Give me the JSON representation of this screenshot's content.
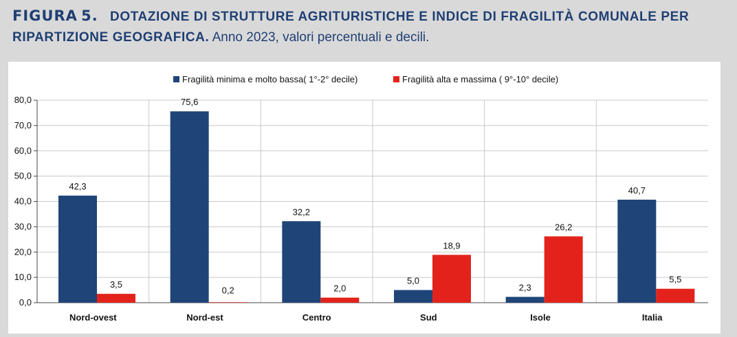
{
  "heading": {
    "label": "FIGURA",
    "number": "5.",
    "title": "DOTAZIONE DI STRUTTURE AGRITURISTICHE E INDICE DI FRAGILITÀ COMUNALE PER RIPARTIZIONE GEOGRAFICA.",
    "subtitle": "Anno 2023, valori percentuali e decili."
  },
  "colors": {
    "series1": "#1f4478",
    "series2": "#e3231b",
    "grid": "#c8c8c8",
    "heading": "#1f3f73"
  },
  "chart_data": {
    "type": "bar",
    "categories": [
      "Nord-ovest",
      "Nord-est",
      "Centro",
      "Sud",
      "Isole",
      "Italia"
    ],
    "series": [
      {
        "name": "Fragilità minima e molto bassa( 1°-2° decile)",
        "values": [
          42.3,
          75.6,
          32.2,
          5.0,
          2.3,
          40.7
        ],
        "labels": [
          "42,3",
          "75,6",
          "32,2",
          "5,0",
          "2,3",
          "40,7"
        ]
      },
      {
        "name": "Fragilità alta e massima ( 9°-10° decile)",
        "values": [
          3.5,
          0.2,
          2.0,
          18.9,
          26.2,
          5.5
        ],
        "labels": [
          "3,5",
          "0,2",
          "2,0",
          "18,9",
          "26,2",
          "5,5"
        ]
      }
    ],
    "yticks": [
      "0,0",
      "10,0",
      "20,0",
      "30,0",
      "40,0",
      "50,0",
      "60,0",
      "70,0",
      "80,0"
    ],
    "ylim": [
      0,
      80
    ],
    "grid": true,
    "legend": "top"
  }
}
